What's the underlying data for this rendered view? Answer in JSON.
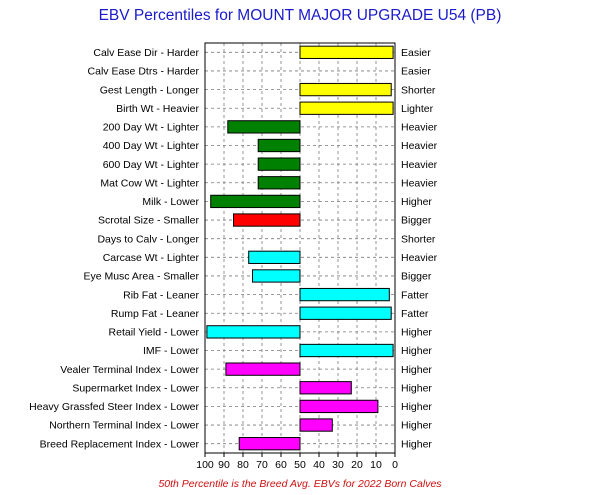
{
  "chart_data": {
    "type": "bar",
    "orientation": "horizontal",
    "title": "EBV Percentiles for MOUNT MAJOR UPGRADE U54 (PB)",
    "footnote": "50th Percentile is the Breed Avg. EBVs for 2022 Born Calves",
    "x_ticks": [
      "100",
      "90",
      "80",
      "70",
      "60",
      "50",
      "40",
      "30",
      "20",
      "10",
      "0"
    ],
    "xlim": [
      100,
      0
    ],
    "baseline": 50,
    "grid": true,
    "colors": {
      "yellow": "#ffff00",
      "green": "#008000",
      "red": "#ff0000",
      "cyan": "#00ffff",
      "magenta": "#ff00ff"
    },
    "traits": [
      {
        "left": "Calv Ease Dir - Harder",
        "right": "Easier",
        "value": 1,
        "color": "yellow"
      },
      {
        "left": "Calv Ease Dtrs - Harder",
        "right": "Easier",
        "value": null,
        "color": null
      },
      {
        "left": "Gest Length - Longer",
        "right": "Shorter",
        "value": 2,
        "color": "yellow"
      },
      {
        "left": "Birth Wt - Heavier",
        "right": "Lighter",
        "value": 1,
        "color": "yellow"
      },
      {
        "left": "200 Day Wt - Lighter",
        "right": "Heavier",
        "value": 88,
        "color": "green"
      },
      {
        "left": "400 Day Wt - Lighter",
        "right": "Heavier",
        "value": 72,
        "color": "green"
      },
      {
        "left": "600 Day Wt - Lighter",
        "right": "Heavier",
        "value": 72,
        "color": "green"
      },
      {
        "left": "Mat Cow Wt - Lighter",
        "right": "Heavier",
        "value": 72,
        "color": "green"
      },
      {
        "left": "Milk - Lower",
        "right": "Higher",
        "value": 97,
        "color": "green"
      },
      {
        "left": "Scrotal Size - Smaller",
        "right": "Bigger",
        "value": 85,
        "color": "red"
      },
      {
        "left": "Days to Calv - Longer",
        "right": "Shorter",
        "value": null,
        "color": null
      },
      {
        "left": "Carcase Wt - Lighter",
        "right": "Heavier",
        "value": 77,
        "color": "cyan"
      },
      {
        "left": "Eye Musc Area - Smaller",
        "right": "Bigger",
        "value": 75,
        "color": "cyan"
      },
      {
        "left": "Rib Fat - Leaner",
        "right": "Fatter",
        "value": 3,
        "color": "cyan"
      },
      {
        "left": "Rump Fat - Leaner",
        "right": "Fatter",
        "value": 2,
        "color": "cyan"
      },
      {
        "left": "Retail Yield - Lower",
        "right": "Higher",
        "value": 99,
        "color": "cyan"
      },
      {
        "left": "IMF - Lower",
        "right": "Higher",
        "value": 1,
        "color": "cyan"
      },
      {
        "left": "Vealer Terminal Index - Lower",
        "right": "Higher",
        "value": 89,
        "color": "magenta"
      },
      {
        "left": "Supermarket Index - Lower",
        "right": "Higher",
        "value": 23,
        "color": "magenta"
      },
      {
        "left": "Heavy Grassfed Steer Index - Lower",
        "right": "Higher",
        "value": 9,
        "color": "magenta"
      },
      {
        "left": "Northern Terminal Index - Lower",
        "right": "Higher",
        "value": 33,
        "color": "magenta"
      },
      {
        "left": "Breed Replacement Index - Lower",
        "right": "Higher",
        "value": 82,
        "color": "magenta"
      }
    ]
  }
}
